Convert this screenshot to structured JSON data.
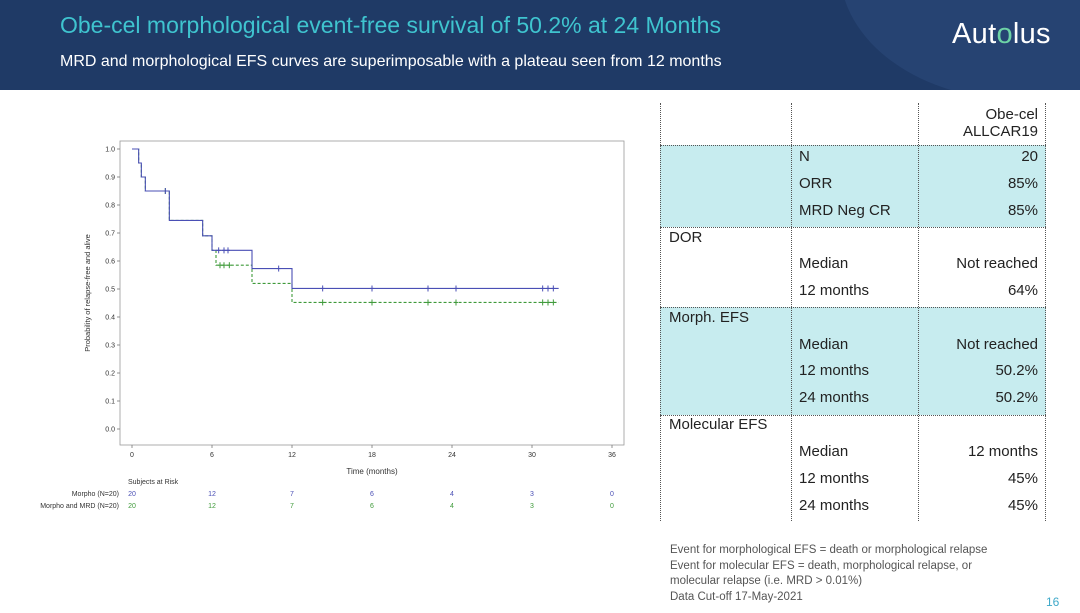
{
  "header": {
    "title": "Obe-cel morphological event-free survival of 50.2% at 24 Months",
    "subtitle": "MRD and morphological EFS curves are superimposable with a plateau seen from 12 months",
    "logo_prefix": "Aut",
    "logo_dot": "o",
    "logo_suffix": "lus"
  },
  "chart_data": {
    "type": "line",
    "xlabel": "Time (months)",
    "ylabel": "Probability of relapse-free and alive",
    "xlim": [
      0,
      36
    ],
    "ylim": [
      0,
      1.0
    ],
    "x_ticks": [
      "0",
      "6",
      "12",
      "18",
      "24",
      "30",
      "36"
    ],
    "y_ticks": [
      "0.0",
      "0.1",
      "0.2",
      "0.3",
      "0.4",
      "0.5",
      "0.6",
      "0.7",
      "0.8",
      "0.9",
      "1.0"
    ],
    "series": [
      {
        "name": "Morpho",
        "color": "#4a4fb5",
        "dash": "solid",
        "steps": [
          [
            0,
            1.0
          ],
          [
            0.5,
            0.95
          ],
          [
            0.7,
            0.9
          ],
          [
            1.0,
            0.85
          ],
          [
            2.8,
            0.745
          ],
          [
            5.3,
            0.69
          ],
          [
            6.0,
            0.638
          ],
          [
            9.0,
            0.573
          ],
          [
            12.0,
            0.502
          ],
          [
            32.0,
            0.502
          ]
        ],
        "censored": [
          [
            2.5,
            0.85
          ],
          [
            6.5,
            0.638
          ],
          [
            6.9,
            0.638
          ],
          [
            7.2,
            0.638
          ],
          [
            11.0,
            0.573
          ],
          [
            14.3,
            0.502
          ],
          [
            18.0,
            0.502
          ],
          [
            22.2,
            0.502
          ],
          [
            24.3,
            0.502
          ],
          [
            30.8,
            0.502
          ],
          [
            31.2,
            0.502
          ],
          [
            31.6,
            0.502
          ]
        ]
      },
      {
        "name": "Morpho and MRD",
        "color": "#3f9a3a",
        "dash": "dashed",
        "steps": [
          [
            0,
            1.0
          ],
          [
            0.5,
            0.95
          ],
          [
            0.7,
            0.9
          ],
          [
            1.0,
            0.85
          ],
          [
            2.8,
            0.745
          ],
          [
            5.3,
            0.69
          ],
          [
            6.0,
            0.638
          ],
          [
            6.3,
            0.585
          ],
          [
            9.0,
            0.52
          ],
          [
            12.0,
            0.452
          ],
          [
            32.0,
            0.452
          ]
        ],
        "censored": [
          [
            2.5,
            0.85
          ],
          [
            6.6,
            0.585
          ],
          [
            6.9,
            0.585
          ],
          [
            7.3,
            0.585
          ],
          [
            14.3,
            0.452
          ],
          [
            18.0,
            0.452
          ],
          [
            22.2,
            0.452
          ],
          [
            24.3,
            0.452
          ],
          [
            30.8,
            0.452
          ],
          [
            31.2,
            0.452
          ],
          [
            31.6,
            0.452
          ]
        ]
      }
    ],
    "risk_table": {
      "title": "Subjects at Risk",
      "rows": [
        {
          "label": "Morpho (N=20)",
          "color": "#4a4fb5",
          "values": [
            "20",
            "12",
            "7",
            "6",
            "4",
            "3",
            "0"
          ]
        },
        {
          "label": "Morpho and MRD  (N=20)",
          "color": "#3f9a3a",
          "values": [
            "20",
            "12",
            "7",
            "6",
            "4",
            "3",
            "0"
          ]
        }
      ]
    }
  },
  "table": {
    "column_header_line1": "Obe-cel",
    "column_header_line2": "ALLCAR19",
    "rows": [
      {
        "group": "",
        "label": "N",
        "value": "20"
      },
      {
        "group": "",
        "label": "ORR",
        "value": "85%"
      },
      {
        "group": "",
        "label": "MRD Neg CR",
        "value": "85%"
      },
      {
        "group": "DOR",
        "label": "",
        "value": ""
      },
      {
        "group": "",
        "label": "Median",
        "value": "Not reached"
      },
      {
        "group": "",
        "label": "12 months",
        "value": "64%"
      },
      {
        "group": "Morph. EFS",
        "label": "",
        "value": ""
      },
      {
        "group": "",
        "label": "Median",
        "value": "Not reached"
      },
      {
        "group": "",
        "label": "12 months",
        "value": "50.2%"
      },
      {
        "group": "",
        "label": "24 months",
        "value": "50.2%"
      },
      {
        "group": "Molecular EFS",
        "label": "",
        "value": ""
      },
      {
        "group": "",
        "label": "Median",
        "value": "12 months"
      },
      {
        "group": "",
        "label": "12 months",
        "value": "45%"
      },
      {
        "group": "",
        "label": "24 months",
        "value": "45%"
      }
    ],
    "band_color": "#c7ecef"
  },
  "footnotes": [
    "Event for morphological EFS = death or morphological relapse",
    "Event for molecular EFS = death, morphological relapse, or",
    "molecular relapse (i.e. MRD > 0.01%)",
    "Data Cut-off 17-May-2021"
  ],
  "page_number": "16"
}
